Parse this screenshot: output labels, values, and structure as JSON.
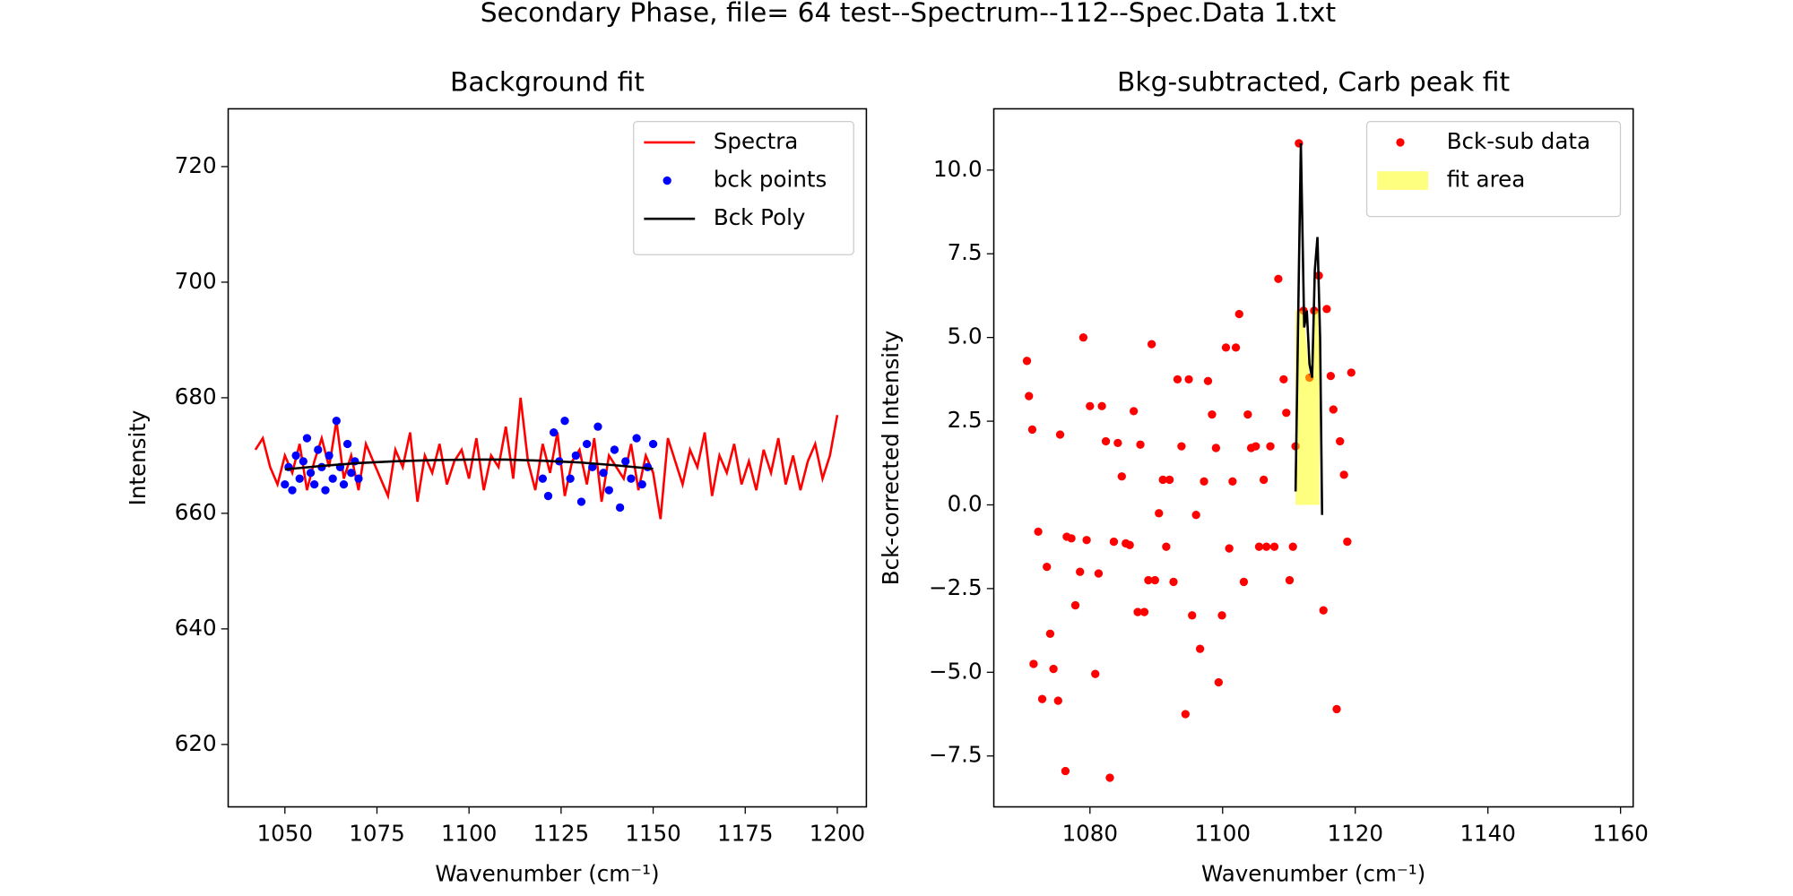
{
  "title": "Secondary Phase, file= 64 test--Spectrum--112--Spec.Data 1.txt",
  "chart_data": [
    {
      "type": "line",
      "title": "Background fit",
      "xlabel": "Wavenumber (cm⁻¹)",
      "ylabel": "Intensity",
      "xlim": [
        1034.6,
        1207.9
      ],
      "ylim": [
        609.2,
        730
      ],
      "xticks": [
        1050,
        1075,
        1100,
        1125,
        1150,
        1175,
        1200
      ],
      "yticks": [
        620,
        640,
        660,
        680,
        700,
        720
      ],
      "grid": false,
      "legend": "upper right",
      "series": [
        {
          "name": "Spectra",
          "type": "line",
          "color": "#ff0000",
          "x": [
            1042,
            1044,
            1046,
            1048,
            1050,
            1052,
            1054,
            1056,
            1058,
            1060,
            1062,
            1064,
            1066,
            1068,
            1070,
            1072,
            1074,
            1076,
            1078,
            1080,
            1082,
            1084,
            1086,
            1088,
            1090,
            1092,
            1094,
            1096,
            1098,
            1100,
            1102,
            1104,
            1106,
            1108,
            1110,
            1112,
            1114,
            1116,
            1118,
            1120,
            1122,
            1124,
            1126,
            1128,
            1130,
            1132,
            1134,
            1136,
            1138,
            1140,
            1142,
            1144,
            1146,
            1148,
            1150,
            1152,
            1154,
            1156,
            1158,
            1160,
            1162,
            1164,
            1166,
            1168,
            1170,
            1172,
            1174,
            1176,
            1178,
            1180,
            1182,
            1184,
            1186,
            1188,
            1190,
            1192,
            1194,
            1196,
            1198,
            1200
          ],
          "values": [
            671,
            673,
            668,
            665,
            670,
            667,
            672,
            664,
            669,
            673,
            668,
            676,
            666,
            670,
            664,
            672,
            669,
            666,
            663,
            671,
            668,
            674,
            662,
            670,
            667,
            672,
            665,
            669,
            671,
            666,
            673,
            664,
            670,
            668,
            675,
            666,
            680,
            669,
            664,
            672,
            667,
            674,
            663,
            669,
            671,
            665,
            673,
            662,
            670,
            668,
            666,
            672,
            664,
            670,
            667,
            659,
            673,
            669,
            665,
            671,
            668,
            674,
            663,
            670,
            667,
            672,
            665,
            669,
            664,
            671,
            667,
            673,
            665,
            670,
            664,
            669,
            672,
            666,
            670,
            677
          ]
        },
        {
          "name": "bck points",
          "type": "scatter",
          "color": "#0000ff",
          "x": [
            1050,
            1051,
            1052,
            1053,
            1054,
            1055,
            1056,
            1057,
            1058,
            1059,
            1060,
            1061,
            1062,
            1063,
            1064,
            1065,
            1066,
            1067,
            1068,
            1069,
            1070,
            1120,
            1121.5,
            1123,
            1124.5,
            1126,
            1127.5,
            1129,
            1130.5,
            1132,
            1133.5,
            1135,
            1136.5,
            1138,
            1139.5,
            1141,
            1142.5,
            1144,
            1145.5,
            1147,
            1148.5,
            1150
          ],
          "values": [
            665,
            668,
            664,
            670,
            666,
            669,
            673,
            667,
            665,
            671,
            668,
            664,
            670,
            666,
            676,
            668,
            665,
            672,
            667,
            669,
            666,
            666,
            663,
            674,
            669,
            676,
            666,
            670,
            662,
            672,
            668,
            675,
            667,
            664,
            671,
            661,
            669,
            666,
            673,
            665,
            668,
            672
          ]
        },
        {
          "name": "Bck Poly",
          "type": "line",
          "color": "#000000",
          "x": [
            1050,
            1060,
            1070,
            1080,
            1090,
            1100,
            1110,
            1120,
            1130,
            1140,
            1150
          ],
          "values": [
            667.6,
            668.2,
            668.7,
            669.0,
            669.2,
            669.3,
            669.3,
            669.1,
            668.8,
            668.3,
            667.7
          ]
        }
      ]
    },
    {
      "type": "scatter",
      "title": "Bkg-subtracted, Carb peak fit",
      "xlabel": "Wavenumber (cm⁻¹)",
      "ylabel": "Bck-corrected Intensity",
      "xlim": [
        1065.5,
        1161.9
      ],
      "ylim": [
        -9.02,
        11.83
      ],
      "xticks": [
        1080,
        1100,
        1120,
        1140,
        1160
      ],
      "yticks": [
        {
          "value": -7.5,
          "label": "−7.5"
        },
        {
          "value": -5,
          "label": "−5.0"
        },
        {
          "value": -2.5,
          "label": "−2.5"
        },
        {
          "value": 0,
          "label": "0.0"
        },
        {
          "value": 2.5,
          "label": "2.5"
        },
        {
          "value": 5,
          "label": "5.0"
        },
        {
          "value": 7.5,
          "label": "7.5"
        },
        {
          "value": 10,
          "label": "10.0"
        }
      ],
      "grid": false,
      "legend": "upper right",
      "series": [
        {
          "name": "Bck-sub data",
          "type": "scatter",
          "color": "#ff0000",
          "x": [
            1070.5,
            1070.8,
            1071.3,
            1071.5,
            1072.2,
            1072.8,
            1073.5,
            1074,
            1074.5,
            1075.2,
            1075.5,
            1076.3,
            1076.5,
            1077.2,
            1077.8,
            1078.5,
            1079,
            1079.5,
            1080,
            1080.8,
            1081.3,
            1081.8,
            1082.4,
            1083,
            1083.6,
            1084.2,
            1084.8,
            1085.4,
            1086,
            1086.6,
            1087.2,
            1087.6,
            1088.2,
            1088.8,
            1089.3,
            1089.8,
            1090.4,
            1091,
            1091.5,
            1092,
            1092.6,
            1093.2,
            1093.8,
            1094.4,
            1094.9,
            1095.4,
            1096,
            1096.6,
            1097.2,
            1097.8,
            1098.4,
            1099,
            1099.4,
            1099.9,
            1100.5,
            1101,
            1101.5,
            1102,
            1102.5,
            1103.2,
            1103.8,
            1104.3,
            1105,
            1105.5,
            1106.2,
            1106.6,
            1107.2,
            1107.8,
            1108.4,
            1109.2,
            1109.6,
            1110.1,
            1110.6,
            1111,
            1111.5,
            1112.2,
            1113.1,
            1113.8,
            1114.5,
            1115.2,
            1115.7,
            1116.3,
            1116.7,
            1117.2,
            1117.7,
            1118.3,
            1118.8,
            1119.4
          ],
          "values": [
            4.3,
            3.25,
            2.25,
            -4.75,
            -0.8,
            -5.8,
            -1.85,
            -3.85,
            -4.9,
            -5.85,
            2.1,
            -7.95,
            -0.95,
            -1.0,
            -3.0,
            -2.0,
            5.0,
            -1.05,
            2.95,
            -5.05,
            -2.05,
            2.95,
            1.9,
            -8.15,
            -1.1,
            1.85,
            0.85,
            -1.15,
            -1.2,
            2.8,
            -3.2,
            1.8,
            -3.2,
            -2.25,
            4.8,
            -2.25,
            -0.25,
            0.75,
            -1.25,
            0.75,
            -2.3,
            3.75,
            1.75,
            -6.25,
            3.75,
            -3.3,
            -0.3,
            -4.3,
            0.7,
            3.7,
            2.7,
            1.7,
            -5.3,
            -3.3,
            4.7,
            -1.3,
            0.7,
            4.7,
            5.7,
            -2.3,
            2.7,
            1.7,
            1.75,
            -1.25,
            0.75,
            -1.25,
            1.75,
            -1.25,
            6.75,
            3.75,
            2.75,
            -2.25,
            -1.25,
            1.75,
            10.8,
            5.8,
            3.8,
            5.8,
            6.85,
            -3.15,
            5.85,
            3.85,
            2.85,
            -6.1,
            1.9,
            0.9,
            -1.1,
            3.95
          ]
        },
        {
          "name": "fit area",
          "type": "area",
          "color": "#ffff00",
          "alpha": 0.5,
          "x": [
            1111,
            1112.2,
            1113.1,
            1113.8,
            1114.6
          ],
          "values": [
            5.8,
            5.8,
            3.8,
            5.8,
            5.8
          ]
        },
        {
          "type": "line",
          "color": "#000000",
          "x": [
            1111,
            1111.5,
            1111.8,
            1112.3,
            1112.7,
            1113.1,
            1113.5,
            1113.9,
            1114.3,
            1114.7,
            1115
          ],
          "values": [
            0.4,
            7,
            10.8,
            5.3,
            5.8,
            4.2,
            3.8,
            7,
            8.0,
            5,
            -0.3
          ]
        }
      ]
    }
  ]
}
